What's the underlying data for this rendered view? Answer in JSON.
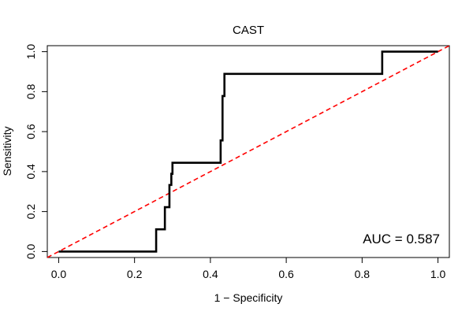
{
  "chart_data": {
    "type": "line",
    "title": "CAST",
    "xlabel": "1 − Specificity",
    "ylabel": "Sensitivity",
    "xlim": [
      -0.03,
      1.03
    ],
    "ylim": [
      -0.03,
      1.03
    ],
    "x_ticks": [
      {
        "value": 0.0,
        "label": "0.0"
      },
      {
        "value": 0.2,
        "label": "0.2"
      },
      {
        "value": 0.4,
        "label": "0.4"
      },
      {
        "value": 0.6,
        "label": "0.6"
      },
      {
        "value": 0.8,
        "label": "0.8"
      },
      {
        "value": 1.0,
        "label": "1.0"
      }
    ],
    "y_ticks": [
      {
        "value": 0.0,
        "label": "0.0"
      },
      {
        "value": 0.2,
        "label": "0.2"
      },
      {
        "value": 0.4,
        "label": "0.4"
      },
      {
        "value": 0.6,
        "label": "0.6"
      },
      {
        "value": 0.8,
        "label": "0.8"
      },
      {
        "value": 1.0,
        "label": "1.0"
      }
    ],
    "series": [
      {
        "name": "ROC curve",
        "color": "#000000",
        "style": "solid",
        "x": [
          0.0,
          0.257,
          0.257,
          0.28,
          0.28,
          0.292,
          0.292,
          0.297,
          0.297,
          0.3,
          0.3,
          0.427,
          0.427,
          0.432,
          0.432,
          0.437,
          0.437,
          0.853,
          0.853,
          1.0
        ],
        "y": [
          0.0,
          0.0,
          0.111,
          0.111,
          0.222,
          0.222,
          0.333,
          0.333,
          0.389,
          0.389,
          0.444,
          0.444,
          0.556,
          0.556,
          0.778,
          0.778,
          0.889,
          0.889,
          1.0,
          1.0
        ]
      },
      {
        "name": "Reference diagonal",
        "color": "#ff0000",
        "style": "dashed",
        "x": [
          -0.03,
          1.03
        ],
        "y": [
          -0.03,
          1.03
        ]
      }
    ],
    "annotation": "AUC = 0.587"
  }
}
